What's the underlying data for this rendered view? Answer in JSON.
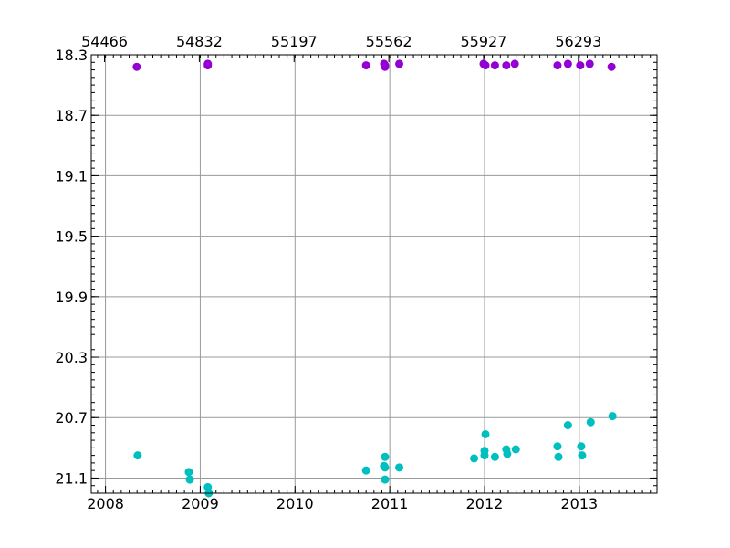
{
  "chart_data": {
    "type": "scatter",
    "title": "",
    "xlabel": "",
    "ylabel": "",
    "x_unit": "decimal year",
    "xlim": [
      2007.85,
      2013.82
    ],
    "ylim": [
      21.2,
      18.3
    ],
    "y_inverted": true,
    "grid": true,
    "x_ticks": [
      {
        "value": 2008,
        "label": "2008"
      },
      {
        "value": 2009,
        "label": "2009"
      },
      {
        "value": 2010,
        "label": "2010"
      },
      {
        "value": 2011,
        "label": "2011"
      },
      {
        "value": 2012,
        "label": "2012"
      },
      {
        "value": 2013,
        "label": "2013"
      }
    ],
    "top_x_ticks": [
      {
        "value": 2007.99,
        "label": "54466"
      },
      {
        "value": 2008.99,
        "label": "54832"
      },
      {
        "value": 2009.99,
        "label": "55197"
      },
      {
        "value": 2010.99,
        "label": "55562"
      },
      {
        "value": 2011.99,
        "label": "55927"
      },
      {
        "value": 2012.99,
        "label": "56293"
      }
    ],
    "y_ticks": [
      {
        "value": 18.3,
        "label": "18.3"
      },
      {
        "value": 18.7,
        "label": "18.7"
      },
      {
        "value": 19.1,
        "label": "19.1"
      },
      {
        "value": 19.5,
        "label": "19.5"
      },
      {
        "value": 19.9,
        "label": "19.9"
      },
      {
        "value": 20.3,
        "label": "20.3"
      },
      {
        "value": 20.7,
        "label": "20.7"
      },
      {
        "value": 21.1,
        "label": "21.1"
      }
    ],
    "series": [
      {
        "color": "#9400d3",
        "points": [
          {
            "x": 2008.33,
            "y": 18.38
          },
          {
            "x": 2009.08,
            "y": 18.36
          },
          {
            "x": 2009.08,
            "y": 18.37
          },
          {
            "x": 2010.75,
            "y": 18.37
          },
          {
            "x": 2010.94,
            "y": 18.36
          },
          {
            "x": 2010.95,
            "y": 18.37
          },
          {
            "x": 2010.95,
            "y": 18.38
          },
          {
            "x": 2011.1,
            "y": 18.36
          },
          {
            "x": 2011.99,
            "y": 18.36
          },
          {
            "x": 2012.01,
            "y": 18.37
          },
          {
            "x": 2012.11,
            "y": 18.37
          },
          {
            "x": 2012.23,
            "y": 18.37
          },
          {
            "x": 2012.32,
            "y": 18.36
          },
          {
            "x": 2012.77,
            "y": 18.37
          },
          {
            "x": 2012.88,
            "y": 18.36
          },
          {
            "x": 2013.01,
            "y": 18.37
          },
          {
            "x": 2013.11,
            "y": 18.36
          },
          {
            "x": 2013.34,
            "y": 18.38
          }
        ]
      },
      {
        "color": "#00bfbf",
        "points": [
          {
            "x": 2008.34,
            "y": 20.95
          },
          {
            "x": 2008.88,
            "y": 21.06
          },
          {
            "x": 2008.89,
            "y": 21.11
          },
          {
            "x": 2009.08,
            "y": 21.16
          },
          {
            "x": 2009.09,
            "y": 21.2
          },
          {
            "x": 2010.75,
            "y": 21.05
          },
          {
            "x": 2010.94,
            "y": 21.02
          },
          {
            "x": 2010.95,
            "y": 20.96
          },
          {
            "x": 2010.95,
            "y": 21.03
          },
          {
            "x": 2010.95,
            "y": 21.11
          },
          {
            "x": 2011.1,
            "y": 21.03
          },
          {
            "x": 2011.89,
            "y": 20.97
          },
          {
            "x": 2012.0,
            "y": 20.95
          },
          {
            "x": 2012.0,
            "y": 20.92
          },
          {
            "x": 2012.01,
            "y": 20.81
          },
          {
            "x": 2012.11,
            "y": 20.96
          },
          {
            "x": 2012.23,
            "y": 20.91
          },
          {
            "x": 2012.24,
            "y": 20.94
          },
          {
            "x": 2012.33,
            "y": 20.91
          },
          {
            "x": 2012.77,
            "y": 20.89
          },
          {
            "x": 2012.78,
            "y": 20.96
          },
          {
            "x": 2012.88,
            "y": 20.75
          },
          {
            "x": 2013.02,
            "y": 20.89
          },
          {
            "x": 2013.03,
            "y": 20.95
          },
          {
            "x": 2013.12,
            "y": 20.73
          },
          {
            "x": 2013.35,
            "y": 20.69
          }
        ]
      }
    ]
  }
}
